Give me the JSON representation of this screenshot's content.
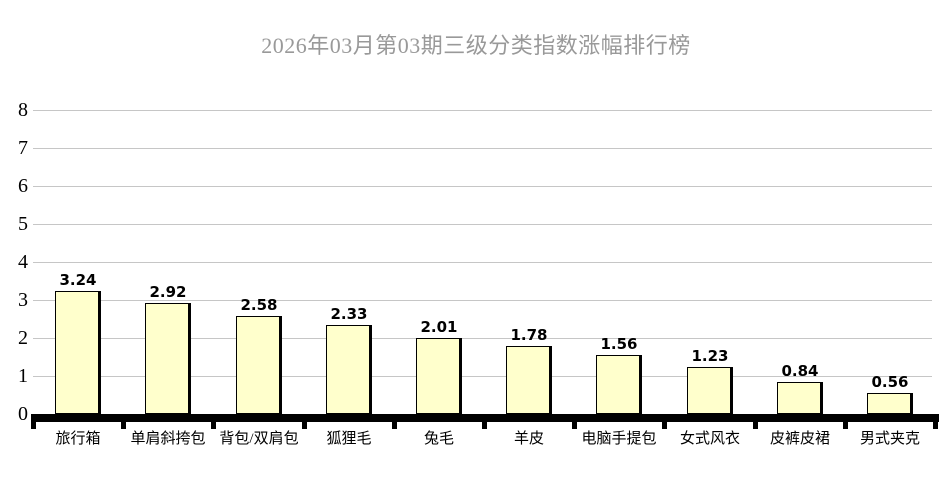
{
  "chart_data": {
    "type": "bar",
    "title": "2026年03月第03期三级分类指数涨幅排行榜",
    "categories": [
      "旅行箱",
      "单肩斜挎包",
      "背包/双肩包",
      "狐狸毛",
      "兔毛",
      "羊皮",
      "电脑手提包",
      "女式风衣",
      "皮裤皮裙",
      "男式夹克"
    ],
    "values": [
      3.24,
      2.92,
      2.58,
      2.33,
      2.01,
      1.78,
      1.56,
      1.23,
      0.84,
      0.56
    ],
    "xlabel": "",
    "ylabel": "",
    "ylim": [
      0,
      8
    ],
    "yticks": [
      0,
      1,
      2,
      3,
      4,
      5,
      6,
      7,
      8
    ],
    "grid": true,
    "legend_position": "none",
    "data_labels": true
  },
  "colors": {
    "background": "#ffffff",
    "bar_fill": "#ffffcc",
    "bar_border": "#000000",
    "gridline": "#c6c6c6",
    "axis": "#000000",
    "title_text": "#999999",
    "label_text": "#000000"
  }
}
